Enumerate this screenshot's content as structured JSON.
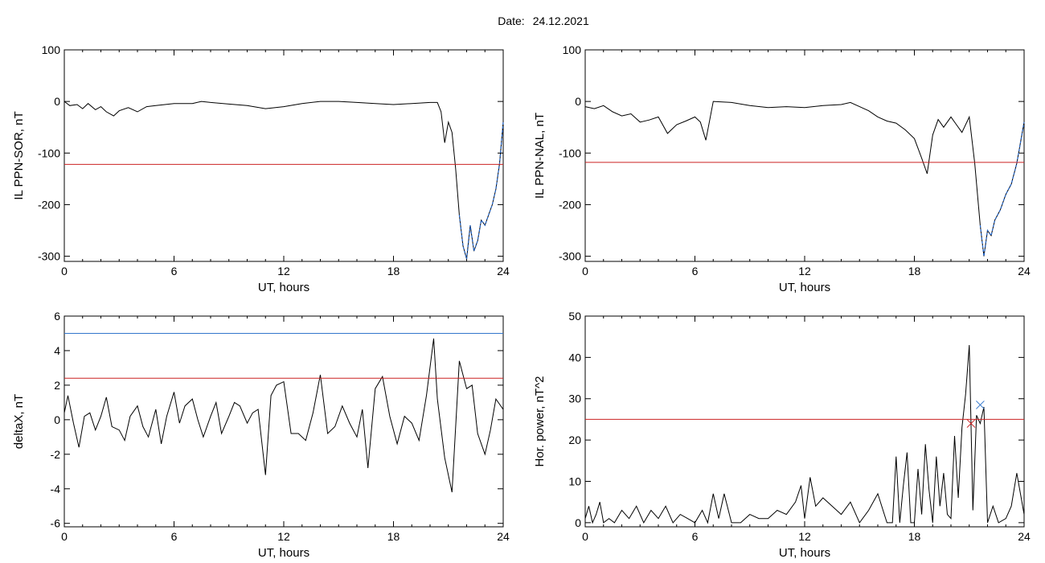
{
  "header": {
    "date_label": "Date:",
    "date_value": "24.12.2021"
  },
  "colors": {
    "trace": "#000000",
    "threshold_red": "#cc2222",
    "threshold_blue": "#3377cc",
    "highlight_blue": "#2266cc",
    "marker_green": "#44aa66"
  },
  "chart_data": [
    {
      "id": "il-ppn-sor",
      "type": "line",
      "xlabel": "UT, hours",
      "ylabel": "IL PPN-SOR, nT",
      "xlim": [
        0,
        24
      ],
      "ylim": [
        -310,
        100
      ],
      "xticks": [
        0,
        6,
        12,
        18,
        24
      ],
      "yticks": [
        100,
        0,
        -100,
        -200,
        -300
      ],
      "thresholds": [
        {
          "color": "red",
          "y": -122
        }
      ],
      "highlight": {
        "color": "blue",
        "x_range": [
          21.5,
          24
        ]
      },
      "series": [
        {
          "x": [
            0,
            0.3,
            0.7,
            1.0,
            1.3,
            1.7,
            2.0,
            2.3,
            2.7,
            3.0,
            3.5,
            4.0,
            4.5,
            5.0,
            6.0,
            7.0,
            7.5,
            8.0,
            9.0,
            10.0,
            11.0,
            12.0,
            13.0,
            14.0,
            15.0,
            16.0,
            17.0,
            18.0,
            19.0,
            20.0,
            20.4,
            20.6,
            20.8,
            21.0,
            21.2,
            21.4,
            21.6,
            21.8,
            22.0,
            22.2,
            22.4,
            22.6,
            22.8,
            23.0,
            23.2,
            23.4,
            23.6,
            23.8,
            24.0
          ],
          "y": [
            0,
            -8,
            -6,
            -14,
            -4,
            -16,
            -10,
            -20,
            -28,
            -18,
            -12,
            -20,
            -10,
            -8,
            -4,
            -4,
            0,
            -2,
            -5,
            -8,
            -14,
            -10,
            -4,
            0,
            0,
            -2,
            -4,
            -6,
            -4,
            -2,
            -2,
            -20,
            -80,
            -40,
            -60,
            -130,
            -220,
            -280,
            -305,
            -240,
            -290,
            -270,
            -230,
            -240,
            -220,
            -200,
            -170,
            -120,
            -40
          ]
        }
      ]
    },
    {
      "id": "il-ppn-nal",
      "type": "line",
      "xlabel": "UT, hours",
      "ylabel": "IL PPN-NAL, nT",
      "xlim": [
        0,
        24
      ],
      "ylim": [
        -310,
        100
      ],
      "xticks": [
        0,
        6,
        12,
        18,
        24
      ],
      "yticks": [
        100,
        0,
        -100,
        -200,
        -300
      ],
      "thresholds": [
        {
          "color": "red",
          "y": -118
        }
      ],
      "highlight": {
        "color": "blue",
        "x_range": [
          21.5,
          24
        ]
      },
      "series": [
        {
          "x": [
            0,
            0.5,
            1.0,
            1.5,
            2.0,
            2.5,
            3.0,
            3.5,
            4.0,
            4.5,
            5.0,
            5.5,
            6.0,
            6.3,
            6.6,
            7.0,
            8.0,
            9.0,
            10.0,
            11.0,
            12.0,
            13.0,
            14.0,
            14.5,
            15.0,
            15.5,
            16.0,
            16.5,
            17.0,
            17.5,
            18.0,
            18.4,
            18.7,
            19.0,
            19.3,
            19.6,
            20.0,
            20.3,
            20.6,
            21.0,
            21.3,
            21.6,
            21.8,
            22.0,
            22.2,
            22.4,
            22.7,
            23.0,
            23.3,
            23.6,
            24.0
          ],
          "y": [
            -10,
            -14,
            -8,
            -20,
            -28,
            -24,
            -40,
            -36,
            -30,
            -62,
            -45,
            -38,
            -30,
            -40,
            -75,
            0,
            -2,
            -8,
            -12,
            -10,
            -12,
            -8,
            -6,
            -2,
            -10,
            -18,
            -30,
            -38,
            -42,
            -55,
            -72,
            -110,
            -140,
            -65,
            -35,
            -50,
            -30,
            -45,
            -60,
            -30,
            -120,
            -240,
            -300,
            -250,
            -260,
            -230,
            -210,
            -180,
            -160,
            -120,
            -40
          ]
        }
      ]
    },
    {
      "id": "deltax",
      "type": "line",
      "xlabel": "UT, hours",
      "ylabel": "deltaX, nT",
      "xlim": [
        0,
        24
      ],
      "ylim": [
        -6.2,
        6
      ],
      "xticks": [
        0,
        6,
        12,
        18,
        24
      ],
      "yticks": [
        6,
        4,
        2,
        0,
        -2,
        -4,
        -6
      ],
      "thresholds": [
        {
          "color": "blue",
          "y": 5.0
        },
        {
          "color": "red",
          "y": 2.4
        }
      ],
      "series": [
        {
          "x": [
            0,
            0.2,
            0.5,
            0.8,
            1.1,
            1.4,
            1.7,
            2.0,
            2.3,
            2.6,
            3.0,
            3.3,
            3.6,
            4.0,
            4.3,
            4.6,
            5.0,
            5.3,
            5.6,
            6.0,
            6.3,
            6.6,
            7.0,
            7.3,
            7.6,
            8.0,
            8.3,
            8.6,
            9.0,
            9.3,
            9.6,
            10.0,
            10.3,
            10.6,
            11.0,
            11.3,
            11.6,
            12.0,
            12.4,
            12.8,
            13.2,
            13.6,
            14.0,
            14.4,
            14.8,
            15.2,
            15.6,
            16.0,
            16.3,
            16.6,
            17.0,
            17.4,
            17.8,
            18.2,
            18.6,
            19.0,
            19.4,
            19.8,
            20.2,
            20.4,
            20.8,
            21.2,
            21.6,
            22.0,
            22.3,
            22.6,
            23.0,
            23.3,
            23.6,
            24.0
          ],
          "y": [
            0.4,
            1.4,
            -0.2,
            -1.6,
            0.2,
            0.4,
            -0.6,
            0.2,
            1.3,
            -0.4,
            -0.6,
            -1.2,
            0.2,
            0.8,
            -0.4,
            -1.0,
            0.6,
            -1.4,
            0.2,
            1.6,
            -0.2,
            0.8,
            1.2,
            0.0,
            -1.0,
            0.2,
            1.0,
            -0.8,
            0.2,
            1.0,
            0.8,
            -0.2,
            0.4,
            0.6,
            -3.2,
            1.4,
            2.0,
            2.2,
            -0.8,
            -0.8,
            -1.2,
            0.4,
            2.6,
            -0.8,
            -0.4,
            0.8,
            -0.2,
            -1.0,
            0.6,
            -2.8,
            1.8,
            2.5,
            0.2,
            -1.4,
            0.2,
            -0.2,
            -1.2,
            1.4,
            4.7,
            1.2,
            -2.2,
            -4.2,
            3.4,
            1.8,
            2.0,
            -0.8,
            -2.0,
            -0.6,
            1.2,
            0.6
          ]
        }
      ]
    },
    {
      "id": "hor-power",
      "type": "line",
      "xlabel": "UT, hours",
      "ylabel": "Hor. power, nT^2",
      "xlim": [
        0,
        24
      ],
      "ylim": [
        -1,
        50
      ],
      "xticks": [
        0,
        6,
        12,
        18,
        24
      ],
      "yticks": [
        50,
        40,
        30,
        20,
        10,
        0
      ],
      "thresholds": [
        {
          "color": "red",
          "y": 25
        }
      ],
      "markers": [
        {
          "x": 21.6,
          "y": 28.5,
          "symbol": "x",
          "color": "blue"
        },
        {
          "x": 21.1,
          "y": 24,
          "symbol": "x",
          "color": "red"
        }
      ],
      "series": [
        {
          "x": [
            0,
            0.2,
            0.4,
            0.6,
            0.8,
            1.0,
            1.3,
            1.6,
            2.0,
            2.4,
            2.8,
            3.2,
            3.6,
            4.0,
            4.4,
            4.8,
            5.2,
            5.6,
            6.0,
            6.4,
            6.7,
            7.0,
            7.3,
            7.6,
            8.0,
            8.5,
            9.0,
            9.5,
            10.0,
            10.5,
            11.0,
            11.5,
            11.8,
            12.0,
            12.3,
            12.6,
            13.0,
            13.5,
            14.0,
            14.5,
            15.0,
            15.5,
            16.0,
            16.5,
            16.8,
            17.0,
            17.2,
            17.4,
            17.6,
            17.8,
            18.0,
            18.2,
            18.4,
            18.6,
            18.8,
            19.0,
            19.2,
            19.4,
            19.6,
            19.8,
            20.0,
            20.2,
            20.4,
            20.6,
            20.8,
            21.0,
            21.2,
            21.4,
            21.6,
            21.8,
            22.0,
            22.3,
            22.6,
            23.0,
            23.3,
            23.6,
            24.0
          ],
          "y": [
            1,
            4,
            0,
            2,
            5,
            0,
            1,
            0,
            3,
            1,
            4,
            0,
            3,
            1,
            4,
            0,
            2,
            1,
            0,
            3,
            0,
            7,
            1,
            7,
            0,
            0,
            2,
            1,
            1,
            3,
            2,
            5,
            9,
            1,
            11,
            4,
            6,
            4,
            2,
            5,
            0,
            3,
            7,
            0,
            0,
            16,
            0,
            9,
            17,
            0,
            0,
            13,
            2,
            19,
            8,
            0,
            16,
            4,
            12,
            2,
            1,
            21,
            6,
            23,
            31,
            43,
            3,
            26,
            24,
            28,
            0,
            4,
            0,
            1,
            4,
            12,
            2
          ]
        }
      ]
    }
  ]
}
